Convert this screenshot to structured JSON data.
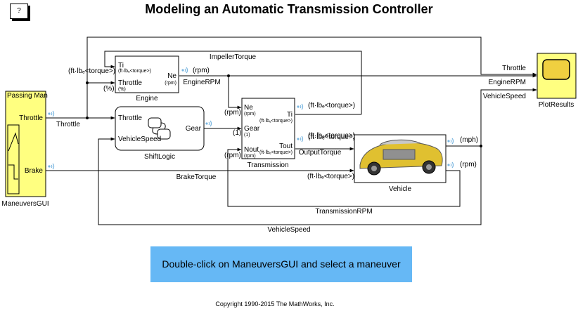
{
  "title": "Modeling an Automatic Transmission Controller",
  "help_label": "?",
  "cta_label": "Double-click on ManeuversGUI and select a maneuver",
  "copyright": "Copyright 1990-2015 The MathWorks, Inc.",
  "colors": {
    "block_yellow": "#ffff80",
    "button_blue": "#66b8f5",
    "wifi_blue": "#7ab6e0"
  },
  "blocks": {
    "maneuvers": {
      "name": "ManeuversGUI",
      "inner_title": "Passing Man",
      "throttle": "Throttle",
      "brake": "Brake"
    },
    "engine": {
      "name": "Engine",
      "ti": "Ti",
      "ti_unit": "(ft·lbₑ<torque>)",
      "throttle": "Throttle",
      "throttle_unit": "(%)",
      "ne": "Ne",
      "ne_unit": "(rpm)"
    },
    "shiftlogic": {
      "name": "ShiftLogic",
      "throttle": "Throttle",
      "vehiclespeed": "VehicleSpeed",
      "gear": "Gear"
    },
    "transmission": {
      "name": "Transmission",
      "ne": "Ne",
      "ne_unit": "(rpm)",
      "gear": "Gear",
      "gear_unit": "(1)",
      "nout": "Nout",
      "nout_unit": "(rpm)",
      "ti": "Ti",
      "ti_unit": "(ft·lbₑ<torque>)",
      "tout": "Tout",
      "tout_unit": "(ft·lbₑ<torque>)"
    },
    "vehicle": {
      "name": "Vehicle"
    },
    "plotresults": {
      "name": "PlotResults"
    }
  },
  "signals": {
    "impeller_torque": "ImpellerTorque",
    "engine_rpm": "EngineRPM",
    "throttle": "Throttle",
    "output_torque": "OutputTorque",
    "brake_torque": "BrakeTorque",
    "transmission_rpm": "TransmissionRPM",
    "vehicle_speed": "VehicleSpeed",
    "plot_throttle": "Throttle",
    "plot_engine_rpm": "EngineRPM",
    "plot_vehicle_speed": "VehicleSpeed"
  },
  "units": {
    "torque_in": "(ft·lbₑ<torque>)",
    "pct_in": "(%)",
    "rpm_engine": "(rpm)",
    "ti_trans": "(ft·lbₑ<torque>)",
    "rpm_ne_in": "(rpm)",
    "gear_in": "(1)",
    "rpm_nout_in": "(rpm)",
    "tout_trans": "(ft·lbₑ<torque>)",
    "vehicle_torque_in": "(ft·lbₑ<torque>)",
    "vehicle_brake_in": "(ft·lbₑ<torque>)",
    "mph": "(mph)",
    "rpm_vehicle": "(rpm)"
  }
}
